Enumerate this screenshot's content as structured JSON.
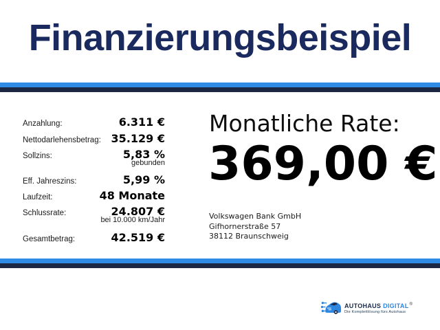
{
  "title": "Finanzierungsbeispiel",
  "colors": {
    "title_navy": "#1a2a5e",
    "stripe_blue": "#2e8ce6",
    "stripe_navy": "#1c2744",
    "logo_navy": "#1c2b4a",
    "logo_blue": "#2e86e0"
  },
  "finance": {
    "rows": [
      {
        "label": "Anzahlung:",
        "value": "6.311 €"
      },
      {
        "label": "Nettodarlehensbetrag:",
        "value": "35.129 €"
      },
      {
        "label": "Sollzins:",
        "value": "5,83 %",
        "note": "gebunden"
      },
      {
        "label": "Eff. Jahreszins:",
        "value": "5,99 %"
      },
      {
        "label": "Laufzeit:",
        "value": "48 Monate"
      },
      {
        "label": "Schlussrate:",
        "value": "24.807 €",
        "note": "bei 10.000 km/Jahr"
      },
      {
        "label": "Gesamtbetrag:",
        "value": "42.519 €"
      }
    ]
  },
  "rate": {
    "label": "Monatliche Rate:",
    "amount": "369,00 €"
  },
  "bank": {
    "lines": [
      "Volkswagen Bank GmbH",
      "Gifhornerstraße 57",
      "38112 Braunschweig"
    ]
  },
  "logo": {
    "brand_primary": "AUTOHAUS",
    "brand_secondary": "DIGITAL",
    "registered": "®",
    "tagline": "Die Komplettlösung fürs Autohaus"
  }
}
